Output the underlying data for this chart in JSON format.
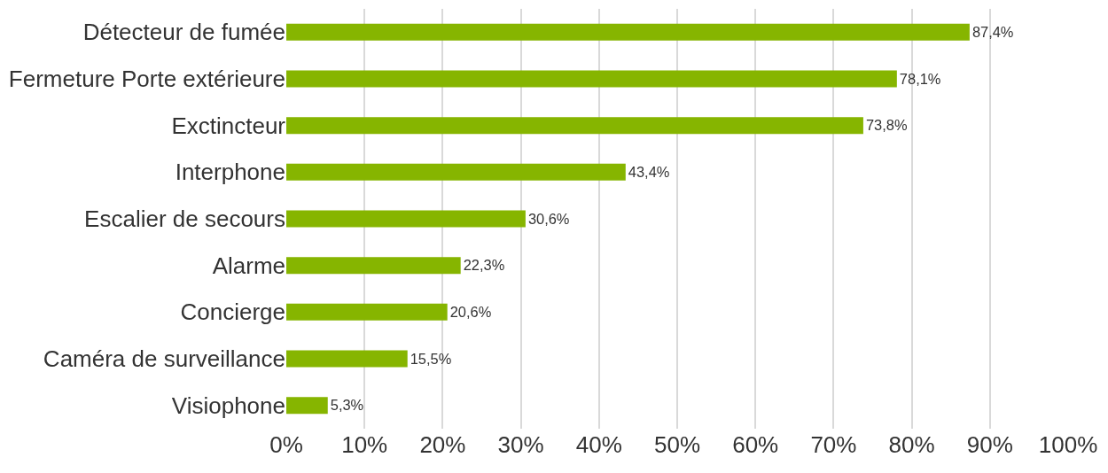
{
  "chart_data": {
    "type": "bar",
    "orientation": "horizontal",
    "categories": [
      "Détecteur de fumée",
      "Fermeture Porte extérieure",
      "Exctincteur",
      "Interphone",
      "Escalier de secours",
      "Alarme",
      "Concierge",
      "Caméra de surveillance",
      "Visiophone"
    ],
    "values": [
      87.4,
      78.1,
      73.8,
      43.4,
      30.6,
      22.3,
      20.6,
      15.5,
      5.3
    ],
    "value_labels": [
      "87,4%",
      "78,1%",
      "73,8%",
      "43,4%",
      "30,6%",
      "22,3%",
      "20,6%",
      "15,5%",
      "5,3%"
    ],
    "color": "#86b500",
    "xlim": [
      0,
      100
    ],
    "xticks": [
      {
        "value": 0,
        "label": "0%"
      },
      {
        "value": 10,
        "label": "10%"
      },
      {
        "value": 20,
        "label": "20%"
      },
      {
        "value": 30,
        "label": "30%"
      },
      {
        "value": 40,
        "label": "40%"
      },
      {
        "value": 50,
        "label": "50%"
      },
      {
        "value": 60,
        "label": "60%"
      },
      {
        "value": 70,
        "label": "70%"
      },
      {
        "value": 80,
        "label": "80%"
      },
      {
        "value": 90,
        "label": "90%"
      },
      {
        "value": 100,
        "label": "100%"
      }
    ],
    "grid": "x"
  }
}
